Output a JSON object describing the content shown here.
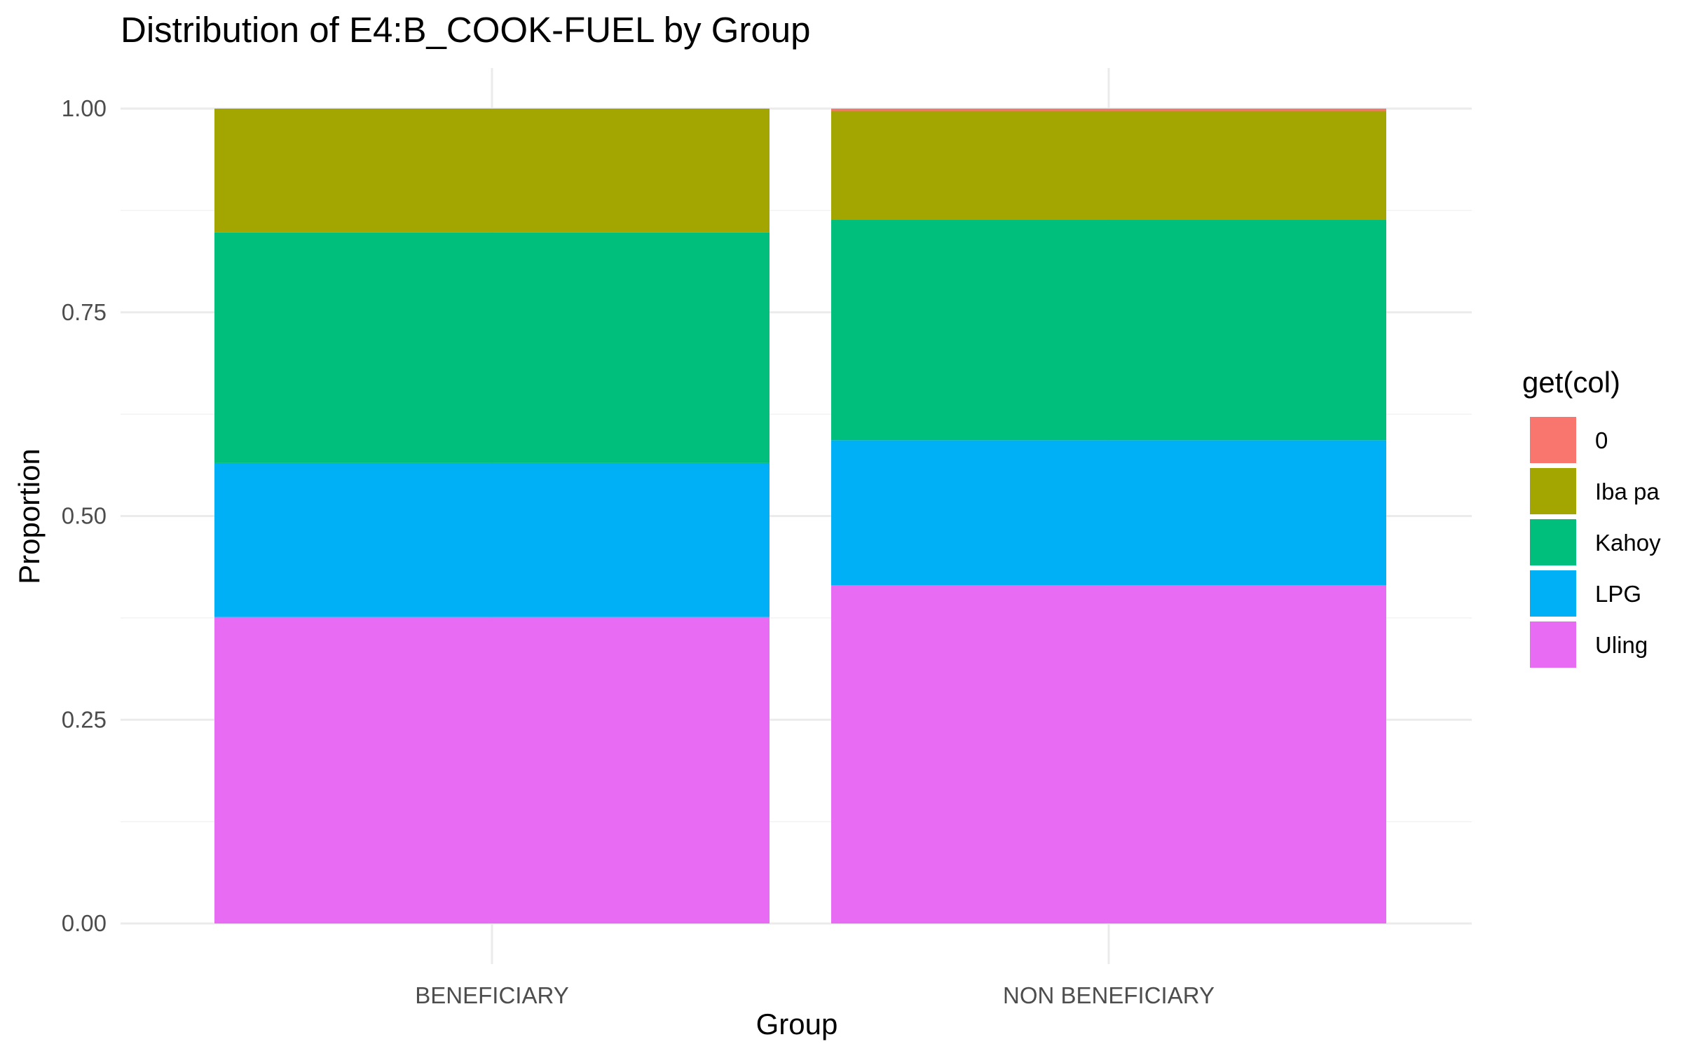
{
  "chart_data": {
    "type": "bar",
    "stacked": true,
    "title": "Distribution of E4:B_COOK-FUEL by Group",
    "xlabel": "Group",
    "ylabel": "Proportion",
    "ylim": [
      0,
      1
    ],
    "y_ticks": [
      "0.00",
      "0.25",
      "0.50",
      "0.75",
      "1.00"
    ],
    "y_tick_values": [
      0,
      0.25,
      0.5,
      0.75,
      1
    ],
    "categories": [
      "BENEFICIARY",
      "NON BENEFICIARY"
    ],
    "legend": {
      "title": "get(col)",
      "position": "right"
    },
    "grid": true,
    "series": [
      {
        "name": "0",
        "color": "#F8766D",
        "values": [
          0.0,
          0.003
        ]
      },
      {
        "name": "Iba pa",
        "color": "#A3A500",
        "values": [
          0.152,
          0.133
        ]
      },
      {
        "name": "Kahoy",
        "color": "#00BF7D",
        "values": [
          0.283,
          0.271
        ]
      },
      {
        "name": "LPG",
        "color": "#00B0F6",
        "values": [
          0.189,
          0.178
        ]
      },
      {
        "name": "Uling",
        "color": "#E76BF3",
        "values": [
          0.376,
          0.415
        ]
      }
    ],
    "stack_order_bottom_to_top": [
      "Uling",
      "LPG",
      "Kahoy",
      "Iba pa",
      "0"
    ]
  }
}
